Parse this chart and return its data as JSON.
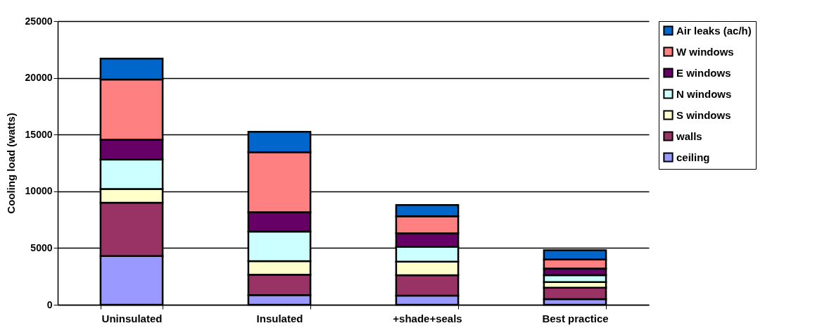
{
  "chart_data": {
    "type": "bar",
    "stacked": true,
    "ylabel": "Cooling load (watts)",
    "categories": [
      "Uninsulated",
      "Insulated",
      "+shade+seals",
      "Best practice"
    ],
    "ylim": [
      0,
      25000
    ],
    "yticks": [
      0,
      5000,
      10000,
      15000,
      20000,
      25000
    ],
    "grid": "y",
    "legend": "right",
    "series": [
      {
        "name": "ceiling",
        "color": "#9999ff",
        "values": [
          4300,
          850,
          800,
          500
        ]
      },
      {
        "name": "walls",
        "color": "#993366",
        "values": [
          4700,
          1800,
          1800,
          1000
        ]
      },
      {
        "name": "S windows",
        "color": "#ffffcc",
        "values": [
          1200,
          1200,
          1200,
          500
        ]
      },
      {
        "name": "N windows",
        "color": "#ccffff",
        "values": [
          2600,
          2600,
          1300,
          600
        ]
      },
      {
        "name": "E windows",
        "color": "#660066",
        "values": [
          1750,
          1700,
          1200,
          600
        ]
      },
      {
        "name": "W windows",
        "color": "#ff8080",
        "values": [
          5300,
          5300,
          1500,
          800
        ]
      },
      {
        "name": "Air leaks (ac/h)",
        "color": "#0066cc",
        "values": [
          1850,
          1800,
          1000,
          800
        ]
      }
    ]
  }
}
